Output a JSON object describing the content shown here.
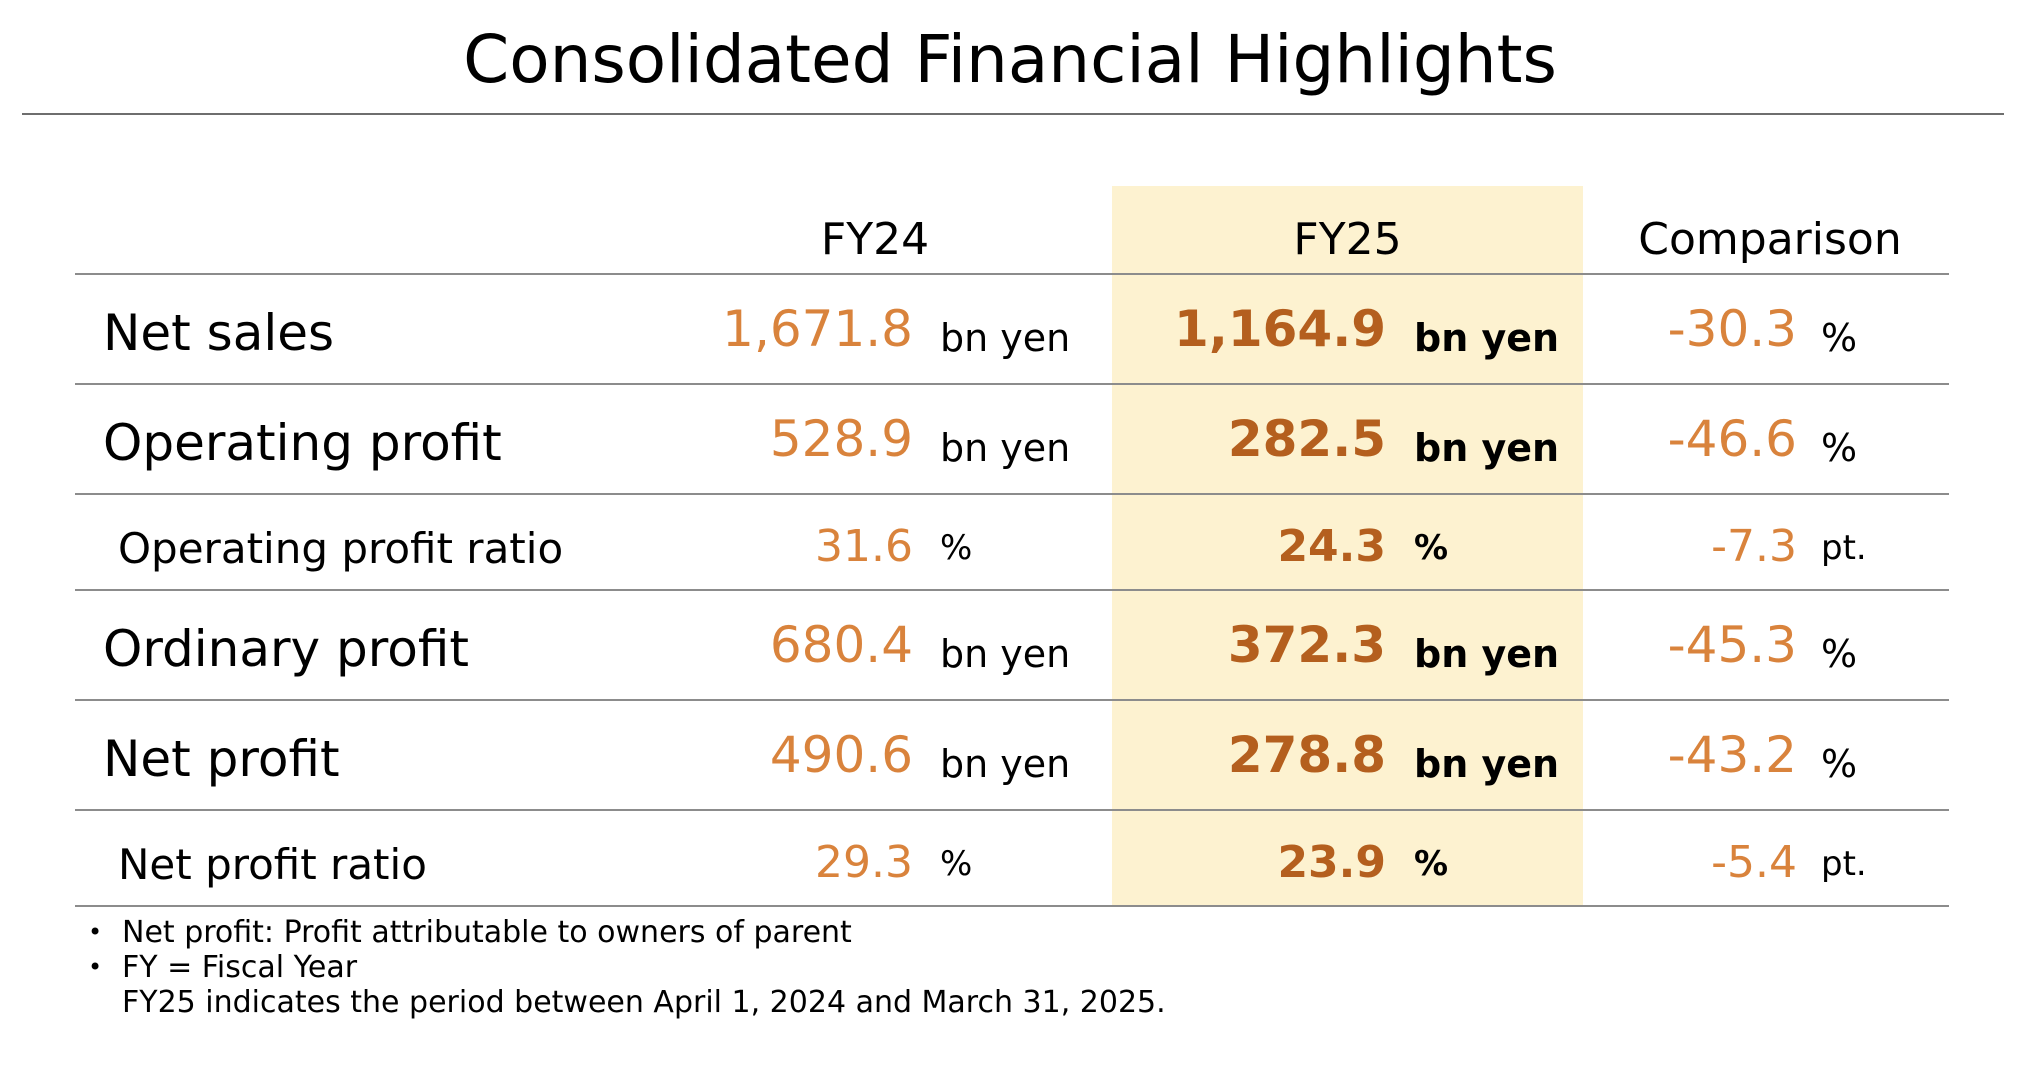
{
  "title": "Consolidated Financial Highlights",
  "columns": {
    "fy24": "FY24",
    "fy25": "FY25",
    "comparison": "Comparison"
  },
  "rows": [
    {
      "label": "Net sales",
      "fy24": "1,671.8",
      "fy24_unit": "bn yen",
      "fy25": "1,164.9",
      "fy25_unit": "bn yen",
      "comparison": "-30.3",
      "comparison_unit": "%"
    },
    {
      "label": "Operating profit",
      "fy24": "528.9",
      "fy24_unit": "bn yen",
      "fy25": "282.5",
      "fy25_unit": "bn yen",
      "comparison": "-46.6",
      "comparison_unit": "%"
    },
    {
      "label": "Operating profit ratio",
      "fy24": "31.6",
      "fy24_unit": "%",
      "fy25": "24.3",
      "fy25_unit": "%",
      "comparison": "-7.3",
      "comparison_unit": "pt."
    },
    {
      "label": "Ordinary profit",
      "fy24": "680.4",
      "fy24_unit": "bn yen",
      "fy25": "372.3",
      "fy25_unit": "bn yen",
      "comparison": "-45.3",
      "comparison_unit": "%"
    },
    {
      "label": "Net profit",
      "fy24": "490.6",
      "fy24_unit": "bn yen",
      "fy25": "278.8",
      "fy25_unit": "bn yen",
      "comparison": "-43.2",
      "comparison_unit": "%"
    },
    {
      "label": "Net profit ratio",
      "fy24": "29.3",
      "fy24_unit": "%",
      "fy25": "23.9",
      "fy25_unit": "%",
      "comparison": "-5.4",
      "comparison_unit": "pt."
    }
  ],
  "notes": {
    "bullet_glyph": "•",
    "net_profit": "Net profit: Profit attributable to owners of parent",
    "fy": "FY = Fiscal Year",
    "fy25_period": "FY25 indicates the period between April 1, 2024 and March 31, 2025."
  },
  "colors": {
    "value": "#d9833c",
    "value_bold": "#b45f1e",
    "highlight": "#fdf2d0",
    "rule": "#8c8c8c"
  }
}
